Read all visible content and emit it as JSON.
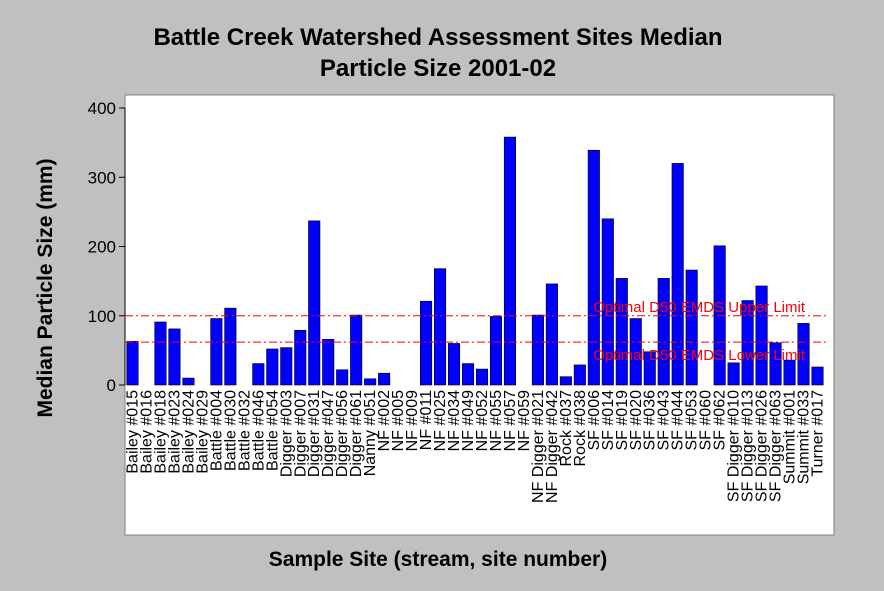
{
  "chart_data": {
    "type": "bar",
    "title_line1": "Battle Creek Watershed Assessment Sites Median",
    "title_line2": "Particle Size 2001-02",
    "xlabel": "Sample Site (stream, site number)",
    "ylabel": "Median Particle Size (mm)",
    "ylim": [
      0,
      400
    ],
    "yticks": [
      "0",
      "100",
      "200",
      "300",
      "400"
    ],
    "grid": false,
    "bar_color": "#0000ff",
    "plot_background": "#ffffff",
    "page_background": "#c0c0c0",
    "categories": [
      "Bailey #015",
      "Bailey #016",
      "Bailey #018",
      "Bailey #023",
      "Bailey #024",
      "Bailey #029",
      "Battle #004",
      "Battle #030",
      "Battle #032",
      "Battle #046",
      "Battle #054",
      "Digger #003",
      "Digger #007",
      "Digger #031",
      "Digger #047",
      "Digger #056",
      "Digger #061",
      "Nanny #051",
      "NF #002",
      "NF #005",
      "NF #009",
      "NF #011",
      "NF #025",
      "NF #034",
      "NF #049",
      "NF #052",
      "NF #055",
      "NF #057",
      "NF #059",
      "NF Digger #021",
      "NF Digger #042",
      "Rock #037",
      "Rock #038",
      "SF #006",
      "SF #014",
      "SF #019",
      "SF #020",
      "SF #036",
      "SF #043",
      "SF #044",
      "SF #053",
      "SF #060",
      "SF #062",
      "SF Digger #010",
      "SF Digger #013",
      "SF Digger #026",
      "SF Digger #063",
      "Summit #001",
      "Summit #033",
      "Turner #017"
    ],
    "values": [
      63,
      0,
      91,
      81,
      10,
      0,
      96,
      111,
      0,
      31,
      52,
      54,
      79,
      237,
      66,
      22,
      101,
      9,
      17,
      0,
      0,
      121,
      168,
      60,
      31,
      23,
      99,
      358,
      0,
      101,
      146,
      12,
      29,
      339,
      240,
      154,
      96,
      48,
      154,
      320,
      166,
      0,
      201,
      32,
      122,
      143,
      61,
      36,
      89,
      26
    ],
    "reference_lines": [
      {
        "label": "Optimal D50 EMDS Upper Limit",
        "value": 100,
        "color": "#ff0000"
      },
      {
        "label": "Optimal D50 EMDS Lower Limit",
        "value": 62,
        "color": "#ff0000"
      }
    ]
  }
}
